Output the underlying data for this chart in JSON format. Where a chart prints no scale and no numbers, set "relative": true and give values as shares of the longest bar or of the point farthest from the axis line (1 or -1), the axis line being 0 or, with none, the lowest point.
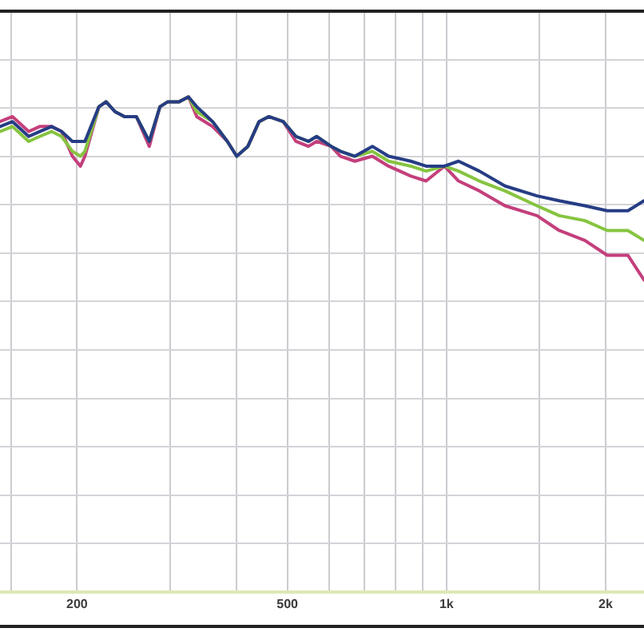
{
  "chart_data": {
    "type": "line",
    "relative": true,
    "log": "x",
    "grid": true,
    "tick_labels": "x",
    "marker": "none",
    "line_style": "solid",
    "xlim": [
      143,
      2364
    ],
    "xticks": [
      {
        "value": 150,
        "label": null
      },
      200,
      {
        "value": 300,
        "label": null
      },
      {
        "value": 400,
        "label": null
      },
      500,
      {
        "value": 600,
        "label": null
      },
      {
        "value": 700,
        "label": null
      },
      {
        "value": 800,
        "label": null
      },
      {
        "value": 900,
        "label": null
      },
      {
        "value": 1000,
        "label": "1k"
      },
      {
        "value": 1500,
        "label": null
      },
      {
        "value": 2000,
        "label": "2k"
      }
    ],
    "x": [
      143,
      151,
      162,
      170,
      179,
      187,
      196,
      203,
      207,
      220,
      227,
      236,
      246,
      259,
      274,
      287,
      297,
      312,
      325,
      337,
      361,
      385,
      401,
      421,
      442,
      461,
      491,
      519,
      548,
      568,
      605,
      630,
      671,
      724,
      777,
      856,
      915,
      991,
      1054,
      1154,
      1290,
      1483,
      1634,
      1827,
      2014,
      2204,
      2364
    ],
    "series": [
      {
        "color": "#263d85",
        "values": [
          0.94,
          0.95,
          0.92,
          0.93,
          0.94,
          0.93,
          0.91,
          0.91,
          0.91,
          0.98,
          0.99,
          0.97,
          0.96,
          0.96,
          0.91,
          0.98,
          0.99,
          0.99,
          1.0,
          0.98,
          0.95,
          0.91,
          0.88,
          0.9,
          0.95,
          0.96,
          0.95,
          0.92,
          0.91,
          0.92,
          0.9,
          0.89,
          0.88,
          0.9,
          0.88,
          0.87,
          0.86,
          0.86,
          0.87,
          0.85,
          0.82,
          0.8,
          0.79,
          0.78,
          0.77,
          0.77,
          0.79
        ]
      },
      {
        "color": "#86c440",
        "values": [
          0.93,
          0.94,
          0.91,
          0.92,
          0.93,
          0.92,
          0.89,
          0.88,
          0.89,
          0.98,
          0.99,
          0.97,
          0.96,
          0.96,
          0.91,
          0.98,
          0.99,
          0.99,
          1.0,
          0.97,
          0.95,
          0.91,
          0.88,
          0.9,
          0.95,
          0.96,
          0.95,
          0.92,
          0.91,
          0.92,
          0.9,
          0.89,
          0.88,
          0.89,
          0.87,
          0.86,
          0.85,
          0.86,
          0.85,
          0.83,
          0.81,
          0.78,
          0.76,
          0.75,
          0.73,
          0.73,
          0.71
        ]
      },
      {
        "color": "#c43f7c",
        "values": [
          0.95,
          0.96,
          0.93,
          0.94,
          0.94,
          0.93,
          0.88,
          0.86,
          0.88,
          0.98,
          0.99,
          0.97,
          0.96,
          0.96,
          0.9,
          0.98,
          0.99,
          0.99,
          1.0,
          0.96,
          0.94,
          0.91,
          0.88,
          0.9,
          0.95,
          0.96,
          0.95,
          0.91,
          0.9,
          0.91,
          0.9,
          0.88,
          0.87,
          0.88,
          0.86,
          0.84,
          0.83,
          0.86,
          0.83,
          0.81,
          0.78,
          0.76,
          0.73,
          0.71,
          0.68,
          0.68,
          0.63
        ]
      }
    ]
  }
}
